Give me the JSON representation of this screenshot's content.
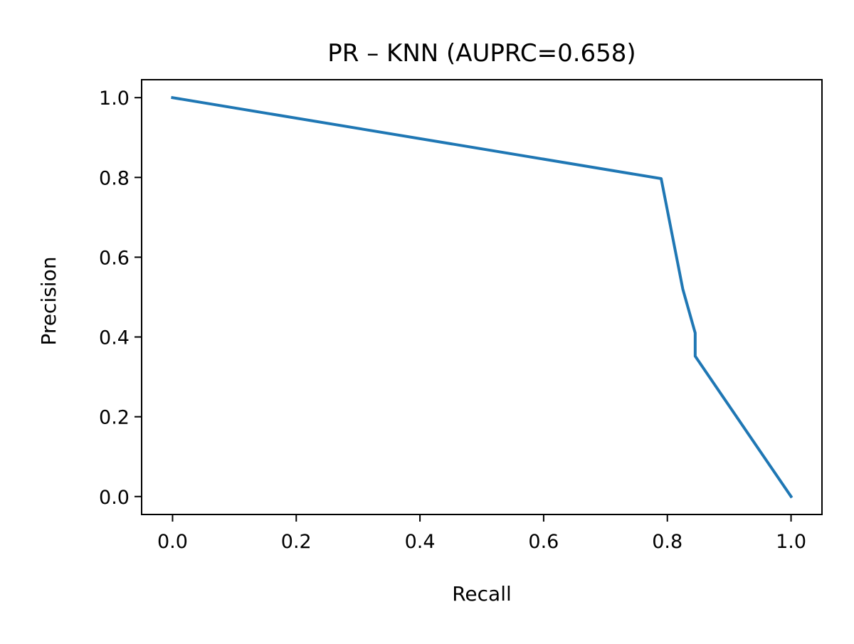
{
  "chart_data": {
    "type": "line",
    "title": "PR – KNN (AUPRC=0.658)",
    "xlabel": "Recall",
    "ylabel": "Precision",
    "xlim": [
      -0.05,
      1.05
    ],
    "ylim": [
      -0.045,
      1.045
    ],
    "xticks": [
      "0.0",
      "0.2",
      "0.4",
      "0.6",
      "0.8",
      "1.0"
    ],
    "yticks": [
      "0.0",
      "0.2",
      "0.4",
      "0.6",
      "0.8",
      "1.0"
    ],
    "grid": false,
    "series": [
      {
        "color": "#1f77b4",
        "x": [
          0.0,
          0.79,
          0.825,
          0.845,
          0.845,
          1.0
        ],
        "y": [
          1.0,
          0.797,
          0.52,
          0.41,
          0.352,
          0.0
        ]
      }
    ]
  }
}
